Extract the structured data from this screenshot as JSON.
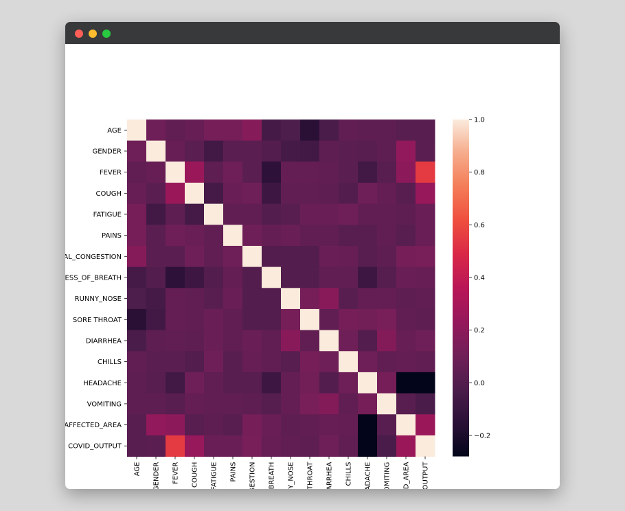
{
  "window": {
    "traffic_lights": {
      "close": "#ff5f57",
      "minimize": "#febc2e",
      "zoom": "#28c840"
    },
    "titlebar_color": "#38393b"
  },
  "chart_data": {
    "type": "heatmap",
    "title": "",
    "labels": [
      "AGE",
      "GENDER",
      "FEVER",
      "COUGH",
      "FATIGUE",
      "PAINS",
      "NASAL_CONGESTION",
      "SHORTNESS_OF_BREATH",
      "RUNNY_NOSE",
      "SORE THROAT",
      "DIARRHEA",
      "CHILLS",
      "HEADACHE",
      "VOMITING",
      "CONTACT_WITH_AFFECTED_AREA",
      "COVID_OUTPUT"
    ],
    "x_tick_labels_visible": [
      "AGE",
      "GENDER",
      "FEVER",
      "COUGH",
      "FATIGUE",
      "PAINS",
      "_CONGESTION",
      "SS_OF_BREATH",
      "RUNNY_NOSE",
      "SORE THROAT",
      "DIARRHEA",
      "CHILLS",
      "HEADACHE",
      "VOMITING",
      "FECTED_AREA",
      "OVID_OUTPUT"
    ],
    "y_tick_labels_visible": [
      "AGE",
      "GENDER",
      "FEVER",
      "COUGH",
      "FATIGUE",
      "PAINS",
      "AL_CONGESTION",
      "ESS_OF_BREATH",
      "RUNNY_NOSE",
      "SORE THROAT",
      "DIARRHEA",
      "CHILLS",
      "HEADACHE",
      "VOMITING",
      "AFFECTED_AREA",
      "COVID_OUTPUT"
    ],
    "matrix": [
      [
        1.0,
        0.1,
        0.05,
        0.07,
        0.12,
        0.12,
        0.18,
        -0.05,
        -0.02,
        -0.15,
        -0.03,
        0.05,
        0.04,
        0.04,
        0.02,
        0.02
      ],
      [
        0.1,
        1.0,
        0.07,
        0.03,
        -0.06,
        0.03,
        0.03,
        0.0,
        -0.05,
        -0.06,
        0.04,
        0.03,
        0.02,
        0.04,
        0.22,
        0.03
      ],
      [
        0.05,
        0.07,
        1.0,
        0.25,
        0.04,
        0.1,
        0.03,
        -0.14,
        0.06,
        0.06,
        0.05,
        0.03,
        -0.06,
        0.02,
        0.2,
        0.55
      ],
      [
        0.07,
        0.03,
        0.25,
        1.0,
        -0.05,
        0.08,
        0.1,
        -0.08,
        0.05,
        0.05,
        0.04,
        0.0,
        0.1,
        0.06,
        0.02,
        0.24
      ],
      [
        0.12,
        -0.06,
        0.04,
        -0.05,
        1.0,
        0.05,
        0.05,
        0.0,
        0.02,
        0.08,
        0.08,
        0.1,
        0.05,
        0.05,
        0.04,
        0.08
      ],
      [
        0.12,
        0.03,
        0.1,
        0.08,
        0.05,
        1.0,
        0.1,
        0.06,
        0.08,
        0.05,
        0.05,
        0.02,
        0.02,
        0.05,
        0.02,
        0.08
      ],
      [
        0.18,
        0.03,
        0.03,
        0.1,
        0.05,
        0.1,
        1.0,
        0.0,
        0.0,
        0.0,
        0.08,
        0.07,
        0.02,
        0.04,
        0.12,
        0.13
      ],
      [
        -0.05,
        0.0,
        -0.14,
        -0.08,
        0.0,
        0.06,
        0.0,
        1.0,
        0.0,
        0.0,
        0.05,
        0.05,
        -0.08,
        0.01,
        0.08,
        0.07
      ],
      [
        -0.02,
        -0.05,
        0.06,
        0.05,
        0.02,
        0.08,
        0.0,
        0.0,
        1.0,
        0.12,
        0.19,
        0.02,
        0.06,
        0.06,
        0.04,
        0.05
      ],
      [
        -0.15,
        -0.06,
        0.06,
        0.05,
        0.08,
        0.05,
        0.0,
        0.0,
        0.12,
        1.0,
        0.05,
        0.12,
        0.11,
        0.13,
        0.05,
        0.04
      ],
      [
        -0.03,
        0.04,
        0.05,
        0.04,
        0.08,
        0.05,
        0.08,
        0.05,
        0.19,
        0.05,
        1.0,
        0.1,
        0.0,
        0.17,
        0.07,
        0.1
      ],
      [
        0.05,
        0.03,
        0.03,
        0.0,
        0.1,
        0.02,
        0.07,
        0.05,
        0.02,
        0.12,
        0.1,
        1.0,
        0.1,
        0.05,
        0.06,
        0.05
      ],
      [
        0.04,
        0.02,
        -0.06,
        0.1,
        0.05,
        0.02,
        0.02,
        -0.08,
        0.06,
        0.11,
        0.0,
        0.1,
        1.0,
        0.12,
        -0.28,
        -0.28
      ],
      [
        0.04,
        0.04,
        0.02,
        0.06,
        0.05,
        0.05,
        0.04,
        0.01,
        0.06,
        0.13,
        0.17,
        0.05,
        0.12,
        1.0,
        0.02,
        -0.03
      ],
      [
        0.02,
        0.22,
        0.2,
        0.02,
        0.04,
        0.02,
        0.12,
        0.08,
        0.04,
        0.05,
        0.07,
        0.06,
        -0.28,
        0.02,
        1.0,
        0.25
      ],
      [
        0.02,
        0.03,
        0.55,
        0.24,
        0.08,
        0.08,
        0.13,
        0.07,
        0.05,
        0.04,
        0.1,
        0.05,
        -0.28,
        -0.03,
        0.25,
        1.0
      ]
    ],
    "vmin": -0.28,
    "vmax": 1.0,
    "colormap": "rocket",
    "colorbar_ticks": [
      1.0,
      0.8,
      0.6,
      0.4,
      0.2,
      0.0,
      -0.2
    ],
    "colorbar_tick_labels": [
      "1.0",
      "0.8",
      "0.6",
      "0.4",
      "0.2",
      "0.0",
      "−0.2"
    ]
  }
}
